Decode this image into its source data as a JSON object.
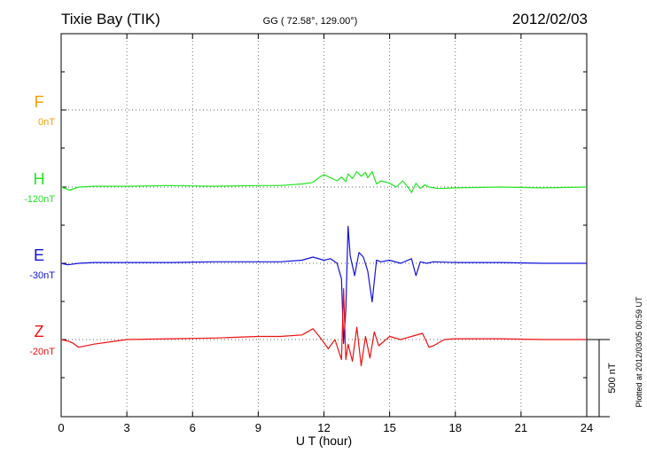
{
  "header": {
    "station": "Tixie Bay (TIK)",
    "coords": "GG ( 72.58°, 129.00°)",
    "date": "2012/02/03"
  },
  "plotted_note": "Plotted at 2012/03/05 00:59 UT",
  "scale_bar_label": "500 nT",
  "chart_data": {
    "type": "line",
    "xlabel": "U T (hour)",
    "xlim": [
      0,
      24
    ],
    "xticks": [
      "0",
      "3",
      "6",
      "9",
      "12",
      "15",
      "18",
      "21",
      "24"
    ],
    "scale_nT": 500,
    "grid": true,
    "series": [
      {
        "name": "F",
        "offset": "0nT",
        "color": "#f5a000",
        "x": [],
        "values": []
      },
      {
        "name": "H",
        "offset": "-120nT",
        "color": "#22e622",
        "x": [
          0,
          0.4,
          0.8,
          1.5,
          3,
          5,
          7,
          9,
          10,
          11,
          11.5,
          11.8,
          12.0,
          12.3,
          12.6,
          12.8,
          13.0,
          13.1,
          13.3,
          13.5,
          13.7,
          13.9,
          14.0,
          14.2,
          14.4,
          14.6,
          15.0,
          15.3,
          15.6,
          15.8,
          16.0,
          16.2,
          16.4,
          16.6,
          16.8,
          17.2,
          18,
          20,
          22,
          24
        ],
        "values": [
          0,
          -20,
          0,
          5,
          5,
          10,
          5,
          10,
          10,
          20,
          30,
          65,
          80,
          60,
          40,
          65,
          35,
          85,
          55,
          100,
          70,
          95,
          60,
          100,
          20,
          40,
          25,
          0,
          40,
          5,
          -35,
          25,
          -10,
          15,
          0,
          -10,
          -5,
          0,
          -5,
          0
        ]
      },
      {
        "name": "E",
        "offset": "-30nT",
        "color": "#1010dd",
        "x": [
          0,
          0.3,
          0.8,
          1.5,
          3,
          5,
          7,
          9,
          10,
          11,
          11.5,
          12.0,
          12.3,
          12.6,
          12.8,
          12.9,
          13.0,
          13.1,
          13.2,
          13.4,
          13.6,
          13.8,
          14.0,
          14.2,
          14.4,
          14.6,
          15.0,
          15.5,
          16.0,
          16.2,
          16.4,
          16.7,
          17.0,
          18,
          20,
          22,
          24
        ],
        "values": [
          0,
          -10,
          0,
          5,
          5,
          5,
          10,
          10,
          10,
          20,
          40,
          20,
          30,
          0,
          -100,
          -520,
          -300,
          240,
          50,
          -80,
          70,
          40,
          -50,
          -250,
          20,
          10,
          20,
          0,
          30,
          -80,
          10,
          0,
          10,
          5,
          5,
          0,
          0
        ]
      },
      {
        "name": "Z",
        "offset": "-20nT",
        "color": "#ee1111",
        "x": [
          0,
          0.3,
          0.5,
          0.8,
          1.5,
          3,
          5,
          7,
          9,
          10,
          11,
          11.5,
          11.9,
          12.2,
          12.5,
          12.8,
          12.9,
          13.0,
          13.1,
          13.3,
          13.5,
          13.7,
          13.9,
          14.1,
          14.3,
          14.5,
          15.0,
          15.5,
          16.0,
          16.5,
          16.8,
          17.0,
          17.5,
          18,
          20,
          22,
          24
        ],
        "values": [
          0,
          -10,
          -20,
          -50,
          -30,
          0,
          5,
          10,
          20,
          20,
          30,
          70,
          0,
          -60,
          0,
          -130,
          330,
          -130,
          -30,
          -140,
          80,
          -170,
          20,
          -120,
          50,
          -40,
          20,
          0,
          20,
          40,
          -50,
          -40,
          0,
          5,
          5,
          0,
          0
        ]
      }
    ]
  }
}
